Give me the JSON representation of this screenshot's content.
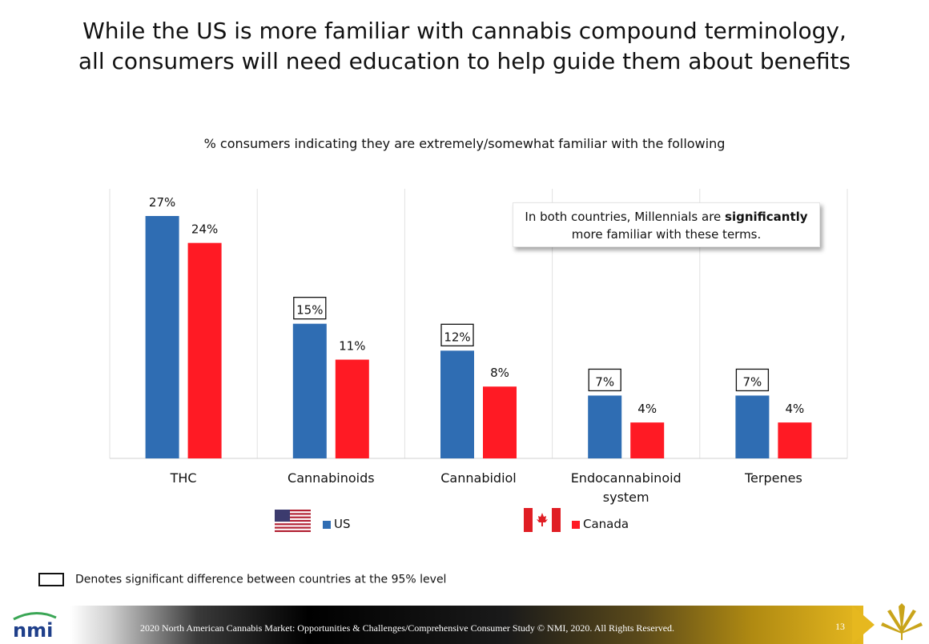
{
  "title_lines": [
    "While the US is more familiar with cannabis compound terminology,",
    "all consumers will need education to help guide them about benefits"
  ],
  "subtitle": "% consumers indicating they are extremely/somewhat familiar with the following",
  "callout": {
    "before": "In both countries, Millennials are ",
    "bold": "significantly",
    "after": " more familiar with these terms."
  },
  "note": "Denotes significant difference between countries at the 95% level",
  "footer": {
    "text": "2020 North American Cannabis Market: Opportunities & Challenges/Comprehensive  Consumer Study © NMI, 2020. All Rights Reserved.",
    "page": "13",
    "logo": "nmi"
  },
  "colors": {
    "us": "#2f6db3",
    "canada": "#ff1a24"
  },
  "chart_data": {
    "type": "bar",
    "categories": [
      "THC",
      "Cannabinoids",
      "Cannabidiol",
      "Endocannabinoid system",
      "Terpenes"
    ],
    "series": [
      {
        "name": "US",
        "values": [
          27,
          15,
          12,
          7,
          7
        ],
        "labels": [
          "27%",
          "15%",
          "12%",
          "7%",
          "7%"
        ],
        "significant": [
          false,
          true,
          true,
          true,
          true
        ]
      },
      {
        "name": "Canada",
        "values": [
          24,
          11,
          8,
          4,
          4
        ],
        "labels": [
          "24%",
          "11%",
          "8%",
          "4%",
          "4%"
        ],
        "significant": [
          false,
          false,
          false,
          false,
          false
        ]
      }
    ],
    "ylim": [
      0,
      27
    ],
    "legend": "bottom"
  }
}
